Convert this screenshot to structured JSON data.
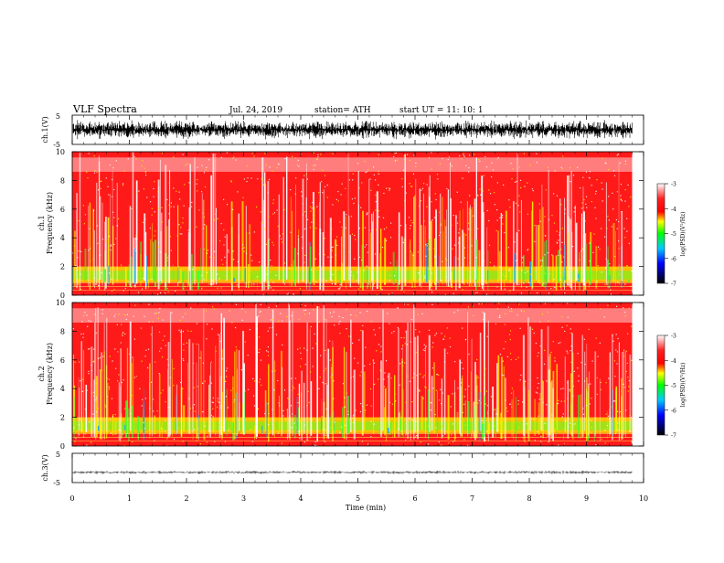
{
  "header": {
    "title": "VLF  Spectra",
    "date": "Jul.  24,  2019",
    "station": "station= ATH",
    "start": "start  UT  =    11: 10: 1"
  },
  "chart_data": [
    {
      "type": "line",
      "panel": "ch1-waveform",
      "ylabel": "ch.1(V)",
      "ylim": [
        -5,
        5
      ],
      "yticks": [
        "5",
        "-5"
      ],
      "xlim": [
        0,
        10
      ],
      "series_color": "#000000",
      "data_extent_min": [
        0,
        9.8
      ]
    },
    {
      "type": "heatmap",
      "panel": "ch1-spectrogram",
      "ylabel_channel": "ch.1",
      "ylabel": "Frequency  (kHz)",
      "ylim": [
        0,
        10
      ],
      "yticks": [
        "0",
        "2",
        "4",
        "6",
        "8",
        "10"
      ],
      "xlim": [
        0,
        10
      ],
      "data_extent_min": [
        0,
        9.8
      ],
      "colorbar": {
        "label": "log(PSD)(V²/Hz)",
        "range": [
          -7,
          -3
        ],
        "ticks": [
          "-3",
          "-4",
          "-5",
          "-6",
          "-7"
        ],
        "colors": [
          "#000000",
          "#0000ff",
          "#00c8ff",
          "#00ff00",
          "#ffff00",
          "#ff0000",
          "#ffffff"
        ]
      }
    },
    {
      "type": "heatmap",
      "panel": "ch2-spectrogram",
      "ylabel_channel": "ch.2",
      "ylabel": "Frequency  (kHz)",
      "ylim": [
        0,
        10
      ],
      "yticks": [
        "0",
        "2",
        "4",
        "6",
        "8",
        "10"
      ],
      "xlim": [
        0,
        10
      ],
      "data_extent_min": [
        0,
        9.8
      ],
      "colorbar": {
        "label": "log(PSD)(V²/Hz)",
        "range": [
          -7,
          -3
        ],
        "ticks": [
          "-3",
          "-4",
          "-5",
          "-6",
          "-7"
        ],
        "colors": [
          "#000000",
          "#0000ff",
          "#00c8ff",
          "#00ff00",
          "#ffff00",
          "#ff0000",
          "#ffffff"
        ]
      }
    },
    {
      "type": "line",
      "panel": "ch3-waveform",
      "ylabel": "ch.3(V)",
      "ylim": [
        -5,
        5
      ],
      "yticks": [
        "5",
        "-5"
      ],
      "xlim": [
        0,
        10
      ],
      "xlabel": "Time  (min)",
      "xticks": [
        "0",
        "1",
        "2",
        "3",
        "4",
        "5",
        "6",
        "7",
        "8",
        "9",
        "10"
      ],
      "series_color": "#000000",
      "data_extent_min": [
        0,
        9.8
      ],
      "level_v": -1.5
    }
  ]
}
